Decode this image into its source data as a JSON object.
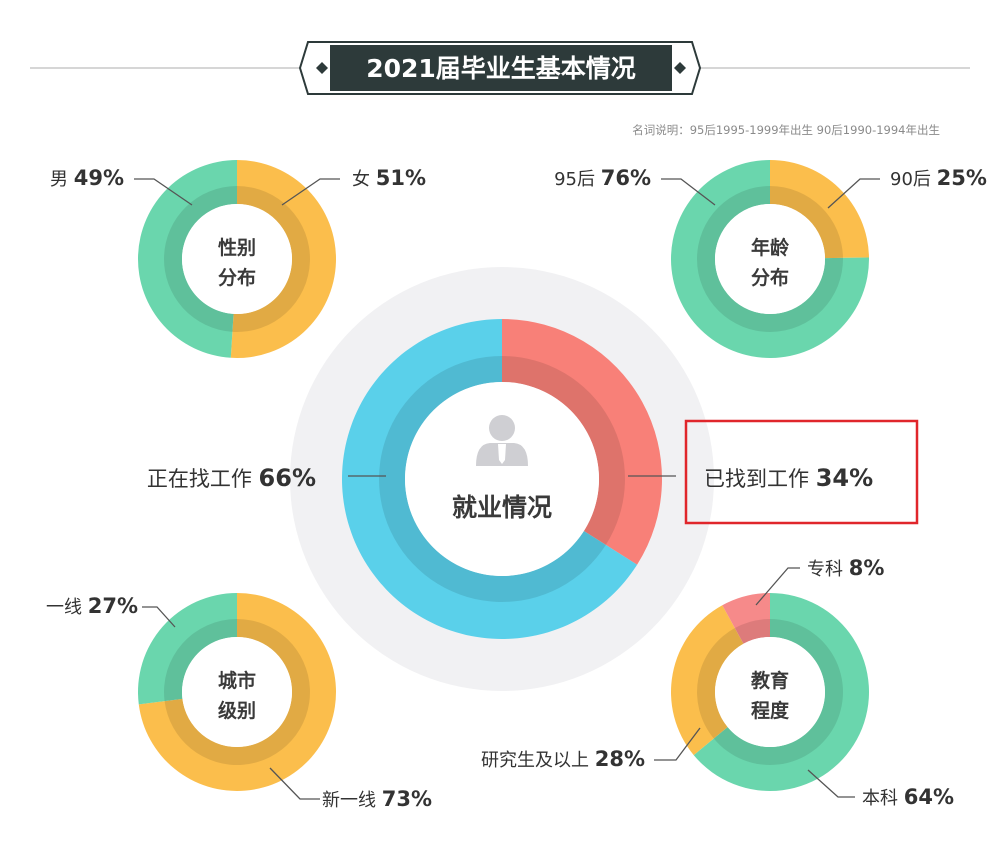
{
  "page": {
    "title": "2021届毕业生基本情况",
    "note": "名词说明：95后1995-1999年出生  90后1990-1994年出生"
  },
  "colors": {
    "green": "#6ad6ad",
    "yellow": "#fbbe4c",
    "blue": "#5ad0ea",
    "salmon": "#f88078",
    "pink": "#f68a8a",
    "banner": "#2d3a3a",
    "highlight_border": "#e0262b"
  },
  "chart_data": [
    {
      "id": "employment",
      "type": "pie",
      "center_label": [
        "就业情况"
      ],
      "center_icon": "person-silhouette-icon",
      "slices": [
        {
          "name": "已找到工作",
          "value": 34,
          "label": "已找到工作",
          "pct": "34%",
          "color": "salmon",
          "highlighted": true
        },
        {
          "name": "正在找工作",
          "value": 66,
          "label": "正在找工作",
          "pct": "66%",
          "color": "blue"
        }
      ]
    },
    {
      "id": "gender",
      "type": "pie",
      "center_label": [
        "性别",
        "分布"
      ],
      "slices": [
        {
          "name": "女",
          "value": 51,
          "label": "女",
          "pct": "51%",
          "color": "yellow"
        },
        {
          "name": "男",
          "value": 49,
          "label": "男",
          "pct": "49%",
          "color": "green"
        }
      ]
    },
    {
      "id": "age",
      "type": "pie",
      "center_label": [
        "年龄",
        "分布"
      ],
      "slices": [
        {
          "name": "90后",
          "value": 25,
          "label": "90后",
          "pct": "25%",
          "color": "yellow"
        },
        {
          "name": "95后",
          "value": 76,
          "label": "95后",
          "pct": "76%",
          "color": "green"
        }
      ]
    },
    {
      "id": "city",
      "type": "pie",
      "center_label": [
        "城市",
        "级别"
      ],
      "slices": [
        {
          "name": "新一线",
          "value": 73,
          "label": "新一线",
          "pct": "73%",
          "color": "yellow"
        },
        {
          "name": "一线",
          "value": 27,
          "label": "一线",
          "pct": "27%",
          "color": "green"
        }
      ]
    },
    {
      "id": "education",
      "type": "pie",
      "center_label": [
        "教育",
        "程度"
      ],
      "slices": [
        {
          "name": "本科",
          "value": 64,
          "label": "本科",
          "pct": "64%",
          "color": "green"
        },
        {
          "name": "研究生及以上",
          "value": 28,
          "label": "研究生及以上",
          "pct": "28%",
          "color": "yellow"
        },
        {
          "name": "专科",
          "value": 8,
          "label": "专科",
          "pct": "8%",
          "color": "pink"
        }
      ]
    }
  ]
}
